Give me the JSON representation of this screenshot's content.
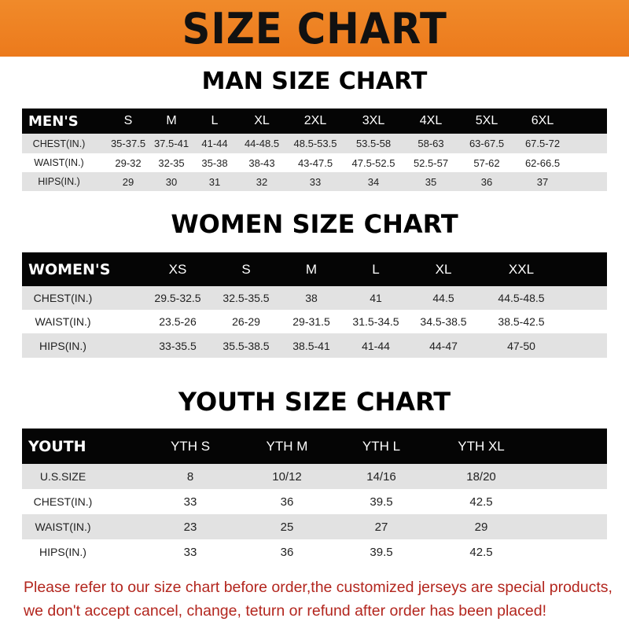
{
  "banner_title": "SIZE CHART",
  "men": {
    "title": "MAN SIZE CHART",
    "header": [
      "MEN'S",
      "S",
      "M",
      "L",
      "XL",
      "2XL",
      "3XL",
      "4XL",
      "5XL",
      "6XL"
    ],
    "rows": [
      [
        "CHEST(IN.)",
        "35-37.5",
        "37.5-41",
        "41-44",
        "44-48.5",
        "48.5-53.5",
        "53.5-58",
        "58-63",
        "63-67.5",
        "67.5-72"
      ],
      [
        "WAIST(IN.)",
        "29-32",
        "32-35",
        "35-38",
        "38-43",
        "43-47.5",
        "47.5-52.5",
        "52.5-57",
        "57-62",
        "62-66.5"
      ],
      [
        "HIPS(IN.)",
        "29",
        "30",
        "31",
        "32",
        "33",
        "34",
        "35",
        "36",
        "37"
      ]
    ]
  },
  "women": {
    "title": "WOMEN SIZE CHART",
    "header": [
      "WOMEN'S",
      "XS",
      "S",
      "M",
      "L",
      "XL",
      "XXL"
    ],
    "rows": [
      [
        "CHEST(IN.)",
        "29.5-32.5",
        "32.5-35.5",
        "38",
        "41",
        "44.5",
        "44.5-48.5"
      ],
      [
        "WAIST(IN.)",
        "23.5-26",
        "26-29",
        "29-31.5",
        "31.5-34.5",
        "34.5-38.5",
        "38.5-42.5"
      ],
      [
        "HIPS(IN.)",
        "33-35.5",
        "35.5-38.5",
        "38.5-41",
        "41-44",
        "44-47",
        "47-50"
      ]
    ]
  },
  "youth": {
    "title": "YOUTH SIZE CHART",
    "header": [
      "YOUTH",
      "YTH S",
      "YTH M",
      "YTH L",
      "YTH XL"
    ],
    "rows": [
      [
        "U.S.SIZE",
        "8",
        "10/12",
        "14/16",
        "18/20"
      ],
      [
        "CHEST(IN.)",
        "33",
        "36",
        "39.5",
        "42.5"
      ],
      [
        "WAIST(IN.)",
        "23",
        "25",
        "27",
        "29"
      ],
      [
        "HIPS(IN.)",
        "33",
        "36",
        "39.5",
        "42.5"
      ]
    ]
  },
  "note": {
    "line1": "Please refer to our size chart before order,the customized jerseys are special products,",
    "line2": "we don't accept cancel, change, teturn or refund after order has been placed!"
  },
  "colors": {
    "banner": "#ef8326",
    "header": "#050505",
    "row_alt": "#e2e2e2",
    "note": "#b3261e"
  }
}
